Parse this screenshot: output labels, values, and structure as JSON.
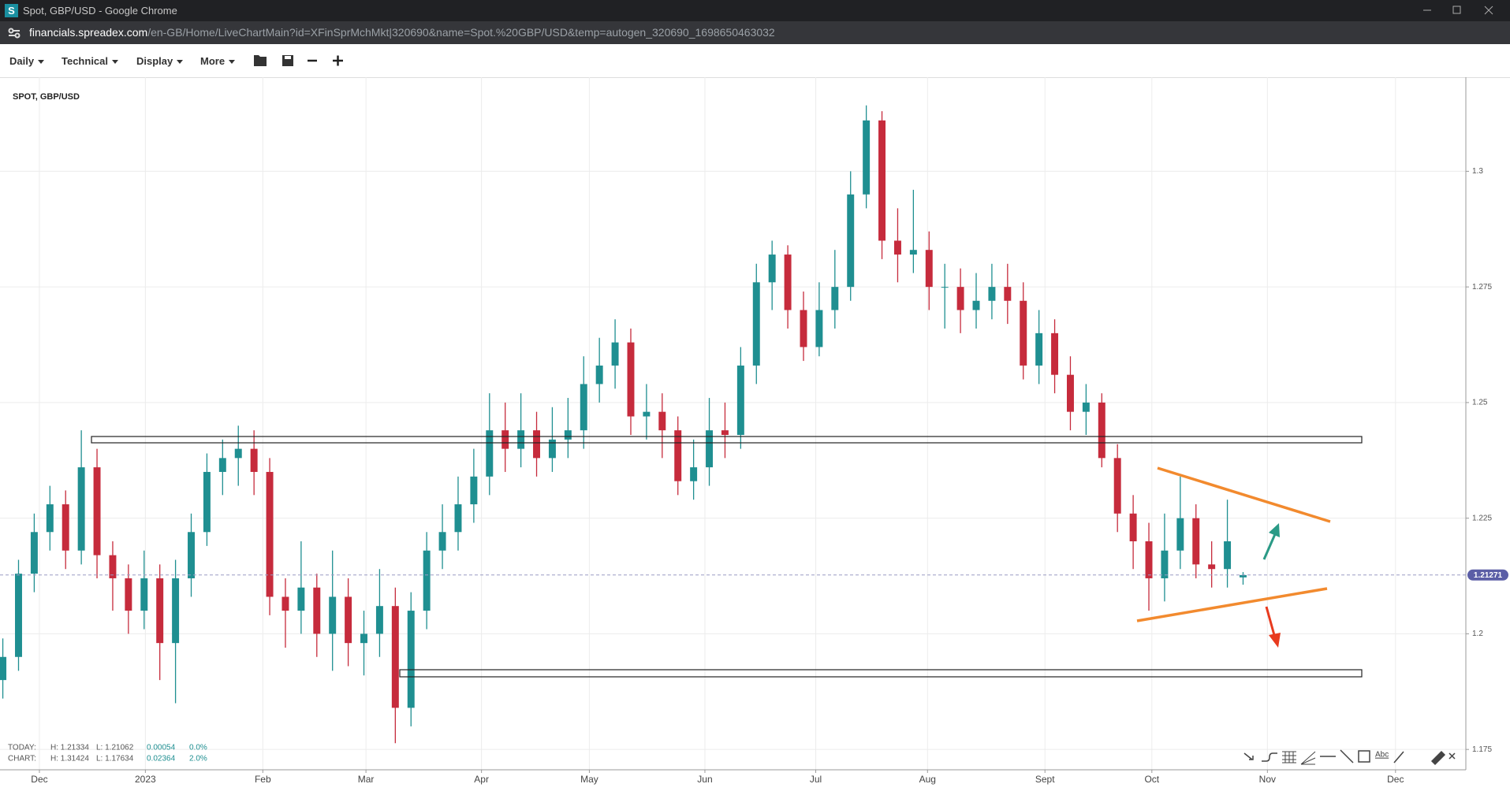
{
  "window": {
    "icon": "S",
    "title": "Spot, GBP/USD - Google Chrome"
  },
  "address_bar": {
    "domain": "financials.spreadex.com",
    "path": "/en-GB/Home/LiveChartMain?id=XFinSprMchMkt|320690&name=Spot.%20GBP/USD&temp=autogen_320690_1698650463032"
  },
  "toolbar": {
    "menus": [
      "Daily",
      "Technical",
      "Display",
      "More"
    ]
  },
  "chart_data": {
    "type": "candlestick",
    "title": "SPOT, GBP/USD",
    "open": [
      1.19,
      1.195,
      1.213,
      1.222,
      1.228,
      1.218,
      1.236,
      1.217,
      1.212,
      1.205,
      1.212,
      1.198,
      1.212,
      1.222,
      1.235,
      1.238,
      1.24,
      1.235,
      1.208,
      1.205,
      1.21,
      1.2,
      1.208,
      1.198,
      1.2,
      1.206,
      1.184,
      1.205,
      1.218,
      1.222,
      1.228,
      1.234,
      1.244,
      1.24,
      1.244,
      1.238,
      1.242,
      1.244,
      1.254,
      1.258,
      1.263,
      1.247,
      1.248,
      1.244,
      1.233,
      1.236,
      1.244,
      1.243,
      1.258,
      1.276,
      1.282,
      1.27,
      1.262,
      1.27,
      1.275,
      1.295,
      1.311,
      1.285,
      1.282,
      1.283,
      1.275,
      1.275,
      1.27,
      1.272,
      1.275,
      1.272,
      1.258,
      1.265,
      1.256,
      1.248,
      1.25,
      1.238,
      1.226,
      1.22,
      1.212,
      1.218,
      1.225,
      1.215,
      1.214,
      1.2122
    ],
    "high": [
      1.199,
      1.216,
      1.226,
      1.232,
      1.231,
      1.244,
      1.24,
      1.22,
      1.215,
      1.218,
      1.215,
      1.216,
      1.226,
      1.239,
      1.242,
      1.245,
      1.244,
      1.238,
      1.212,
      1.22,
      1.213,
      1.218,
      1.212,
      1.205,
      1.214,
      1.21,
      1.209,
      1.222,
      1.228,
      1.234,
      1.24,
      1.252,
      1.25,
      1.252,
      1.248,
      1.249,
      1.251,
      1.26,
      1.264,
      1.268,
      1.266,
      1.254,
      1.252,
      1.247,
      1.242,
      1.251,
      1.25,
      1.262,
      1.28,
      1.285,
      1.284,
      1.274,
      1.276,
      1.283,
      1.3,
      1.31424,
      1.313,
      1.292,
      1.296,
      1.287,
      1.28,
      1.279,
      1.278,
      1.28,
      1.28,
      1.276,
      1.27,
      1.268,
      1.26,
      1.254,
      1.252,
      1.241,
      1.23,
      1.224,
      1.226,
      1.234,
      1.228,
      1.22,
      1.229,
      1.21334
    ],
    "low": [
      1.186,
      1.192,
      1.209,
      1.218,
      1.214,
      1.215,
      1.212,
      1.205,
      1.2,
      1.201,
      1.19,
      1.185,
      1.208,
      1.219,
      1.23,
      1.232,
      1.23,
      1.204,
      1.197,
      1.2,
      1.195,
      1.192,
      1.193,
      1.191,
      1.195,
      1.17634,
      1.18,
      1.201,
      1.214,
      1.218,
      1.224,
      1.23,
      1.235,
      1.236,
      1.234,
      1.235,
      1.238,
      1.24,
      1.25,
      1.253,
      1.243,
      1.242,
      1.238,
      1.23,
      1.229,
      1.232,
      1.238,
      1.24,
      1.254,
      1.27,
      1.266,
      1.259,
      1.26,
      1.266,
      1.272,
      1.292,
      1.281,
      1.276,
      1.278,
      1.27,
      1.266,
      1.265,
      1.266,
      1.268,
      1.267,
      1.255,
      1.254,
      1.252,
      1.244,
      1.243,
      1.236,
      1.222,
      1.214,
      1.205,
      1.207,
      1.214,
      1.212,
      1.21,
      1.21,
      1.21062
    ],
    "close": [
      1.195,
      1.213,
      1.222,
      1.228,
      1.218,
      1.236,
      1.217,
      1.212,
      1.205,
      1.212,
      1.198,
      1.212,
      1.222,
      1.235,
      1.238,
      1.24,
      1.235,
      1.208,
      1.205,
      1.21,
      1.2,
      1.208,
      1.198,
      1.2,
      1.206,
      1.184,
      1.205,
      1.218,
      1.222,
      1.228,
      1.234,
      1.244,
      1.24,
      1.244,
      1.238,
      1.242,
      1.244,
      1.254,
      1.258,
      1.263,
      1.247,
      1.248,
      1.244,
      1.233,
      1.236,
      1.244,
      1.243,
      1.258,
      1.276,
      1.282,
      1.27,
      1.262,
      1.27,
      1.275,
      1.295,
      1.311,
      1.285,
      1.282,
      1.283,
      1.275,
      1.275,
      1.27,
      1.272,
      1.275,
      1.272,
      1.258,
      1.265,
      1.256,
      1.248,
      1.25,
      1.238,
      1.226,
      1.22,
      1.212,
      1.218,
      1.225,
      1.215,
      1.214,
      1.22,
      1.2127
    ],
    "up_color": "#1f8f91",
    "down_color": "#c62b3c",
    "xlim": [
      -0.18,
      93.19
    ],
    "xticks": [
      {
        "value": 2.33,
        "label": "Dec"
      },
      {
        "value": 9.08,
        "label": "2023"
      },
      {
        "value": 16.56,
        "label": "Feb"
      },
      {
        "value": 23.13,
        "label": "Mar"
      },
      {
        "value": 30.49,
        "label": "Apr"
      },
      {
        "value": 37.36,
        "label": "May"
      },
      {
        "value": 44.72,
        "label": "Jun"
      },
      {
        "value": 51.78,
        "label": "Jul"
      },
      {
        "value": 58.9,
        "label": "Aug"
      },
      {
        "value": 66.38,
        "label": "Sept"
      },
      {
        "value": 73.19,
        "label": "Oct"
      },
      {
        "value": 80.55,
        "label": "Nov"
      },
      {
        "value": 88.71,
        "label": "Dec"
      }
    ],
    "ylim": [
      1.1706,
      1.32
    ],
    "yticks": [
      1.175,
      1.2,
      1.225,
      1.25,
      1.275,
      1.3
    ],
    "grid": true,
    "last_price": 1.21271,
    "last_price_color": "#5b5ea6"
  },
  "stats": {
    "rows": [
      {
        "label": "TODAY:",
        "high": "H: 1.21334",
        "low": "L: 1.21062",
        "change": "0.00054",
        "percent": "0.0%"
      },
      {
        "label": "CHART:",
        "high": "H: 1.31424",
        "low": "L: 1.17634",
        "change": "0.02364",
        "percent": "2.0%"
      }
    ]
  },
  "drawing_tools": {
    "text_tool": "Abc"
  }
}
